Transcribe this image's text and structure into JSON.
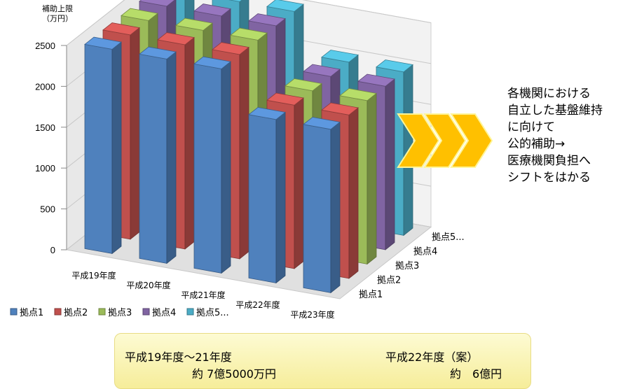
{
  "chart_data": {
    "type": "bar",
    "subtype": "3d-column",
    "ylabel_lines": [
      "補助上限",
      "（万円）"
    ],
    "yticks": [
      0,
      500,
      1000,
      1500,
      2000,
      2500
    ],
    "ylim": [
      0,
      2500
    ],
    "categories": [
      "平成19年度",
      "平成20年度",
      "平成21年度",
      "平成22年度",
      "平成23年度"
    ],
    "depth_labels": [
      "拠点1",
      "拠点2",
      "拠点3",
      "拠点4",
      "拠点5..."
    ],
    "legend_position": "bottom",
    "series": [
      {
        "name": "拠点1",
        "color": "#4f81bd",
        "values": [
          2500,
          2500,
          2500,
          2000,
          2000
        ]
      },
      {
        "name": "拠点2",
        "color": "#c0504d",
        "values": [
          2500,
          2500,
          2500,
          2000,
          2000
        ]
      },
      {
        "name": "拠点3",
        "color": "#9bbb59",
        "values": [
          2500,
          2500,
          2500,
          2000,
          2000
        ]
      },
      {
        "name": "拠点4",
        "color": "#8064a2",
        "values": [
          2500,
          2500,
          2500,
          2000,
          2000
        ]
      },
      {
        "name": "拠点5...",
        "color": "#4bacc6",
        "values": [
          2500,
          2500,
          2500,
          2000,
          2000
        ]
      }
    ]
  },
  "callout": {
    "lines": [
      "各機関における",
      "自立した基盤維持",
      "に向けて",
      "公的補助→",
      "医療機関負担へ",
      "シフトをはかる"
    ],
    "arrow_color": "#ffc000"
  },
  "summary": {
    "left_period": "平成19年度～21年度",
    "left_amount": "約 7億5000万円",
    "right_period": "平成22年度（案）",
    "right_amount": "約　6億円"
  }
}
